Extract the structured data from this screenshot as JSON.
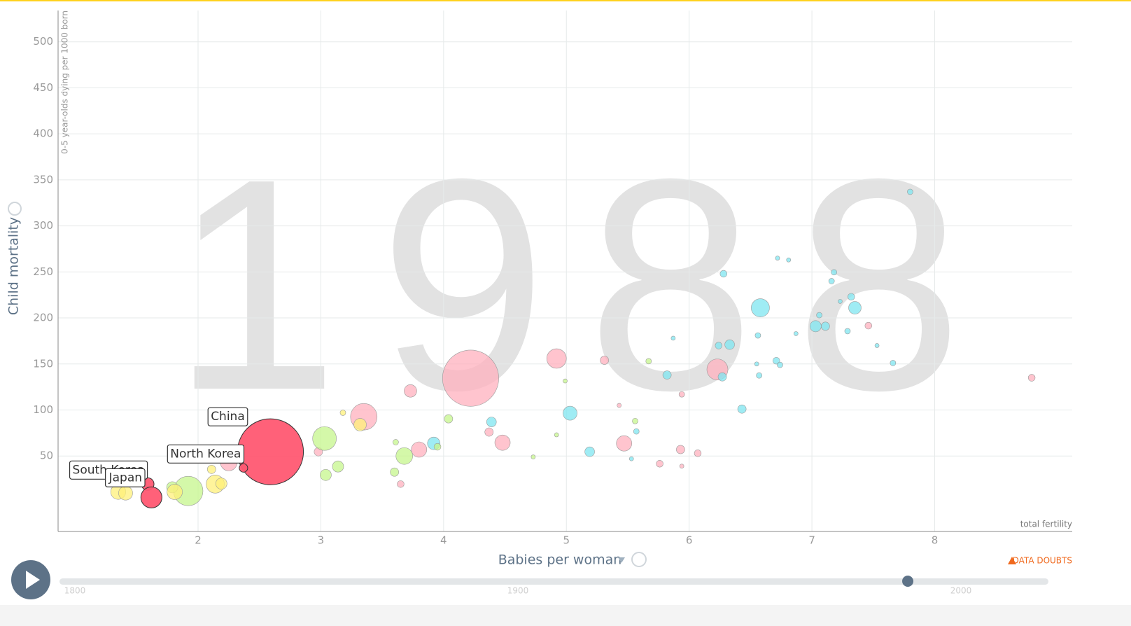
{
  "chart_data": {
    "type": "scatter",
    "year": 1988,
    "y_title": "Child mortality",
    "y_subtitle": "0-5 year-olds dying per 1000 born",
    "x_title": "Babies per woman",
    "x_subtitle": "total fertility",
    "data_doubts": "DATA DOUBTS",
    "xlim": [
      0.86,
      9.12
    ],
    "xticks": [
      2,
      3,
      4,
      5,
      6,
      7,
      8
    ],
    "ylim": [
      -32,
      534
    ],
    "yticks": [
      50,
      100,
      150,
      200,
      250,
      300,
      350,
      400,
      450,
      500
    ],
    "grid": true,
    "timeline": {
      "lim": [
        1800,
        2015
      ],
      "ticks": [
        1800,
        1900,
        2000
      ]
    },
    "series": [
      {
        "color": "#ffb0bd",
        "x": [
          4.22,
          3.35,
          4.92,
          6.23,
          3.73,
          3.8,
          4.48,
          5.47,
          5.31,
          4.37,
          2.98,
          3.65,
          5.93,
          6.07,
          5.76,
          7.46,
          8.79,
          5.94,
          2.25,
          5.43,
          5.94
        ],
        "values": [
          134.5,
          92.6,
          155.9,
          144,
          120.7,
          57,
          64.5,
          63.7,
          154,
          76,
          54.6,
          19.5,
          57,
          53,
          41.6,
          191.6,
          135,
          117,
          43,
          105,
          39
        ],
        "sizes": [
          800,
          179,
          97,
          112,
          40,
          60,
          60,
          60,
          18,
          18,
          18,
          12,
          18,
          12,
          12,
          12,
          12,
          8,
          71,
          4.5,
          4.5
        ]
      },
      {
        "color": "#7fe6f0",
        "x": [
          6.58,
          7.35,
          7.03,
          7.11,
          7.32,
          7.23,
          6.28,
          7.18,
          7.16,
          6.72,
          6.81,
          7.8,
          6.33,
          6.24,
          6.71,
          6.74,
          6.56,
          7.06,
          7.29,
          7.53,
          7.66,
          5.82,
          6.27,
          6.57,
          6.43,
          5.03,
          5.19,
          4.39,
          3.92,
          5.57,
          6.55,
          5.53,
          6.87,
          5.87
        ],
        "values": [
          211,
          211,
          191,
          191,
          223,
          218,
          248,
          249.6,
          240,
          265,
          263,
          337,
          171,
          170,
          153.5,
          149,
          181,
          203,
          185.6,
          170,
          151,
          138,
          136,
          137.5,
          101,
          96.5,
          54.6,
          87,
          63.7,
          76.7,
          150,
          47,
          183,
          178
        ],
        "sizes": [
          84,
          40,
          32,
          18,
          12,
          4.5,
          12,
          8,
          8,
          4.5,
          4.5,
          8,
          24,
          12,
          12,
          8,
          8,
          8,
          8,
          4.5,
          8,
          18,
          18,
          8,
          18,
          50,
          24,
          24,
          40,
          8,
          4.5,
          4.5,
          4.5,
          4.5
        ]
      },
      {
        "color": "#c6f58c",
        "x": [
          3.03,
          1.92,
          3.68,
          3.14,
          3.04,
          3.6,
          4.04,
          3.95,
          5.67,
          4.99,
          5.56,
          3.61,
          4.92,
          4.73,
          1.79
        ],
        "values": [
          69,
          12,
          50,
          38.6,
          29.4,
          32.5,
          90.4,
          60,
          153,
          131.5,
          88,
          65,
          73,
          49,
          16
        ],
        "sizes": [
          143,
          219,
          71,
          32,
          32,
          18,
          18,
          12,
          8,
          4.5,
          8,
          8,
          4.5,
          4.5,
          32
        ]
      },
      {
        "color": "#fff07a",
        "x": [
          2.14,
          1.35,
          1.41,
          1.81,
          2.11,
          3.32,
          3.18,
          2.19
        ],
        "values": [
          19.5,
          11,
          9.7,
          11,
          35.5,
          84,
          97,
          20
        ],
        "sizes": [
          84,
          57,
          50,
          60,
          18,
          40,
          8,
          32
        ]
      },
      {
        "color": "#ff5872",
        "x": [
          2.59,
          2.37,
          1.59,
          1.62
        ],
        "values": [
          54.6,
          37,
          19.5,
          5
        ],
        "sizes": [
          1100,
          18,
          40,
          112
        ],
        "labels": [
          "China",
          "North Korea",
          "South Korea",
          "Japan"
        ]
      }
    ]
  }
}
